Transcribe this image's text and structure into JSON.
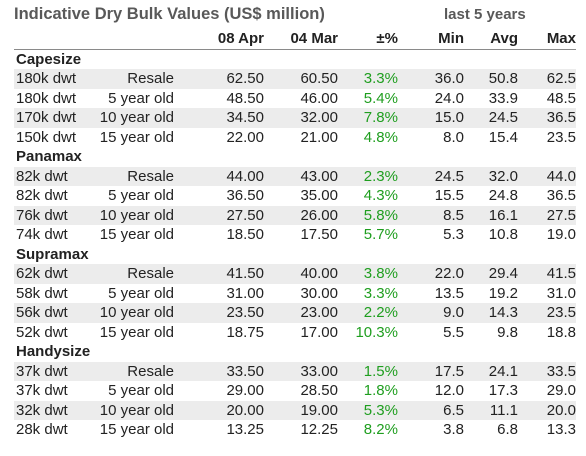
{
  "title": "Indicative Dry Bulk Values (US$ million)",
  "subtitle": "last 5 years",
  "columns": [
    "",
    "",
    "08 Apr",
    "04 Mar",
    "±%",
    "Min",
    "Avg",
    "Max"
  ],
  "sections": [
    {
      "name": "Capesize",
      "rows": [
        [
          "180k dwt",
          "Resale",
          "62.50",
          "60.50",
          "3.3%",
          "36.0",
          "50.8",
          "62.5"
        ],
        [
          "180k dwt",
          "5 year old",
          "48.50",
          "46.00",
          "5.4%",
          "24.0",
          "33.9",
          "48.5"
        ],
        [
          "170k dwt",
          "10 year old",
          "34.50",
          "32.00",
          "7.8%",
          "15.0",
          "24.5",
          "36.5"
        ],
        [
          "150k dwt",
          "15 year old",
          "22.00",
          "21.00",
          "4.8%",
          "8.0",
          "15.4",
          "23.5"
        ]
      ]
    },
    {
      "name": "Panamax",
      "rows": [
        [
          "82k dwt",
          "Resale",
          "44.00",
          "43.00",
          "2.3%",
          "24.5",
          "32.0",
          "44.0"
        ],
        [
          "82k dwt",
          "5 year old",
          "36.50",
          "35.00",
          "4.3%",
          "15.5",
          "24.8",
          "36.5"
        ],
        [
          "76k dwt",
          "10 year old",
          "27.50",
          "26.00",
          "5.8%",
          "8.5",
          "16.1",
          "27.5"
        ],
        [
          "74k dwt",
          "15 year old",
          "18.50",
          "17.50",
          "5.7%",
          "5.3",
          "10.8",
          "19.0"
        ]
      ]
    },
    {
      "name": "Supramax",
      "rows": [
        [
          "62k dwt",
          "Resale",
          "41.50",
          "40.00",
          "3.8%",
          "22.0",
          "29.4",
          "41.5"
        ],
        [
          "58k dwt",
          "5 year old",
          "31.00",
          "30.00",
          "3.3%",
          "13.5",
          "19.2",
          "31.0"
        ],
        [
          "56k dwt",
          "10 year old",
          "23.50",
          "23.00",
          "2.2%",
          "9.0",
          "14.3",
          "23.5"
        ],
        [
          "52k dwt",
          "15 year old",
          "18.75",
          "17.00",
          "10.3%",
          "5.5",
          "9.8",
          "18.8"
        ]
      ]
    },
    {
      "name": "Handysize",
      "rows": [
        [
          "37k dwt",
          "Resale",
          "33.50",
          "33.00",
          "1.5%",
          "17.5",
          "24.1",
          "33.5"
        ],
        [
          "37k dwt",
          "5 year old",
          "29.00",
          "28.50",
          "1.8%",
          "12.0",
          "17.3",
          "29.0"
        ],
        [
          "32k dwt",
          "10 year old",
          "20.00",
          "19.00",
          "5.3%",
          "6.5",
          "11.1",
          "20.0"
        ],
        [
          "28k dwt",
          "15 year old",
          "13.25",
          "12.25",
          "8.2%",
          "3.8",
          "6.8",
          "13.3"
        ]
      ]
    }
  ]
}
